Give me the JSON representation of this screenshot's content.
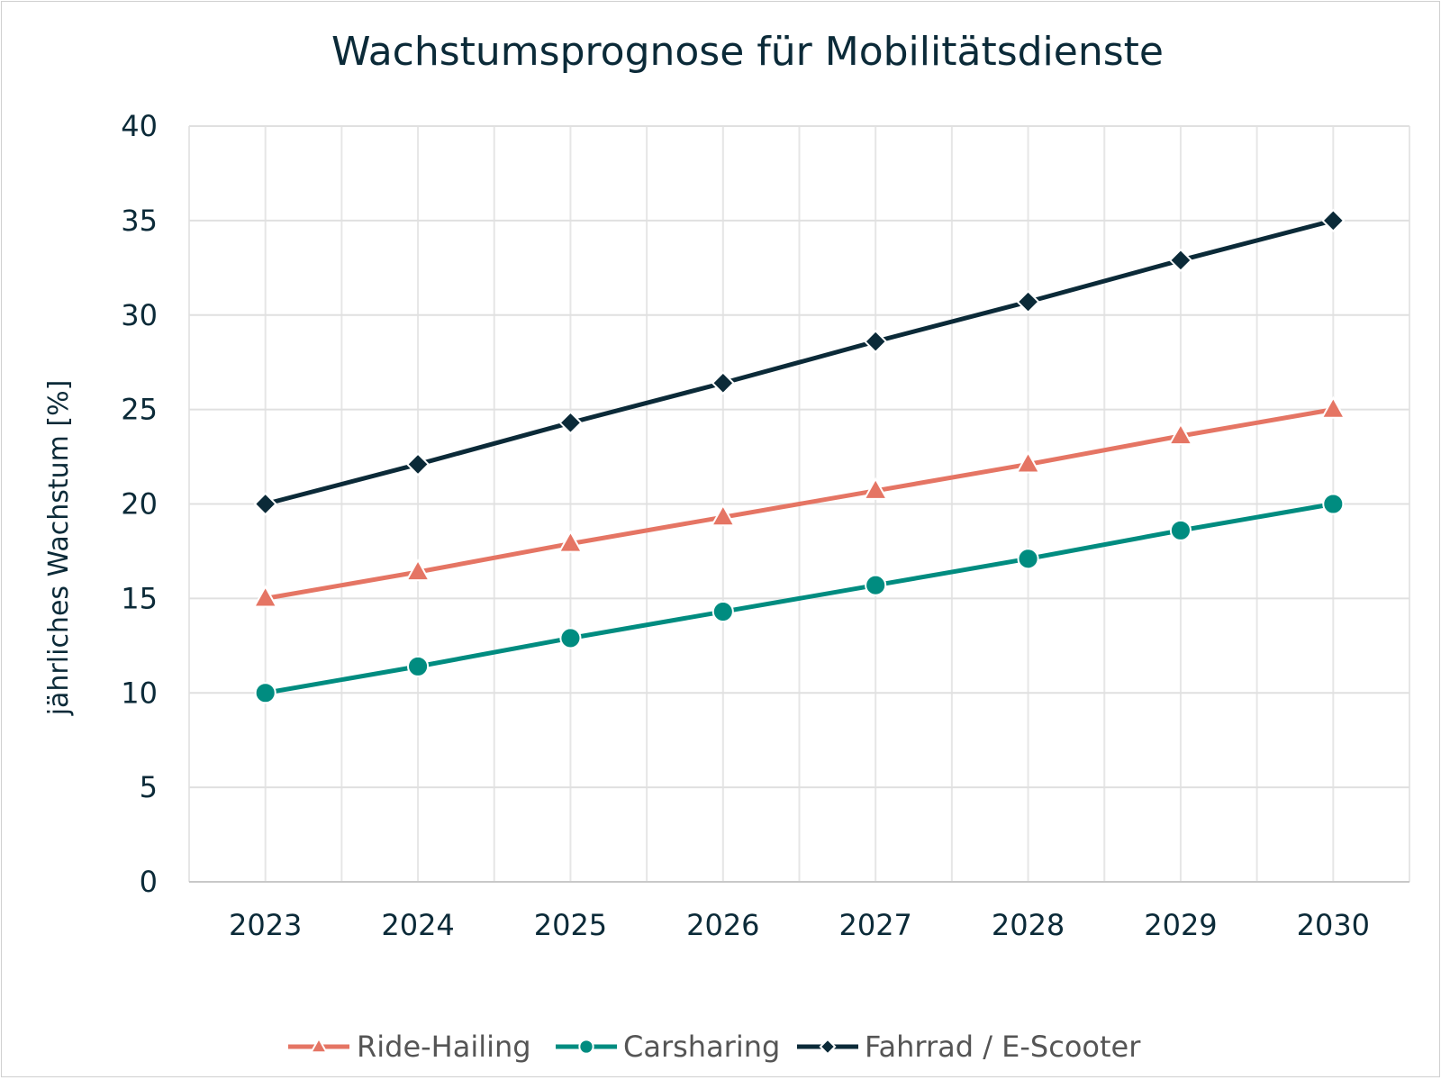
{
  "chart_data": {
    "type": "line",
    "title": "Wachstumsprognose für Mobilitätsdienste",
    "xlabel": "",
    "ylabel": "jährliches Wachstum [%]",
    "categories": [
      "2023",
      "2024",
      "2025",
      "2026",
      "2027",
      "2028",
      "2029",
      "2030"
    ],
    "yticks": [
      "0",
      "5",
      "10",
      "15",
      "20",
      "25",
      "30",
      "35",
      "40"
    ],
    "ylim": [
      0,
      40
    ],
    "grid": true,
    "legend": "bottom",
    "series": [
      {
        "name": "Ride-Hailing",
        "values": [
          15,
          16.4,
          17.9,
          19.3,
          20.7,
          22.1,
          23.6,
          25
        ],
        "color": "#e57564",
        "marker": "triangle"
      },
      {
        "name": "Carsharing",
        "values": [
          10,
          11.4,
          12.9,
          14.3,
          15.7,
          17.1,
          18.6,
          20
        ],
        "color": "#008c80",
        "marker": "circle"
      },
      {
        "name": "Fahrrad / E-Scooter",
        "values": [
          20,
          22.1,
          24.3,
          26.4,
          28.6,
          30.7,
          32.9,
          35
        ],
        "color": "#0b2a38",
        "marker": "diamond"
      }
    ]
  }
}
